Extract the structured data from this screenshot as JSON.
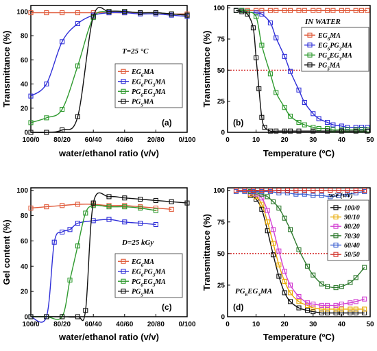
{
  "colors": {
    "EG": "#e05a3a",
    "EGPG": "#2f2fd8",
    "PGEG": "#2e9a2e",
    "PG": "#111111",
    "s7030": "#2f7a2f",
    "s8020": "#d23fd2",
    "s9010": "#e8a800",
    "s6040": "#3a5fd0",
    "s5050": "#d2342c",
    "ref": "#cc0000"
  },
  "chart_data": [
    {
      "id": "a",
      "type": "line",
      "panel_label": "(a)",
      "xlabel": "water/ethanol ratio (v/v)",
      "ylabel": "Transmittance (%)",
      "x_ticks": [
        "100/0",
        "80/20",
        "60/40",
        "40/60",
        "20/80",
        "0/100"
      ],
      "xlim": [
        100,
        0
      ],
      "ylim": [
        0,
        105
      ],
      "y_ticks": [
        0,
        20,
        40,
        60,
        80,
        100
      ],
      "annotation": "T=25 °C",
      "legend": {
        "placement": "center-right"
      },
      "series": [
        {
          "name": "EG₆MA",
          "color_key": "EG",
          "x": [
            100,
            90,
            80,
            70,
            60,
            50,
            40,
            30,
            20,
            10,
            0
          ],
          "y": [
            99,
            99,
            99,
            99,
            99,
            99,
            99,
            99,
            99,
            98,
            98
          ]
        },
        {
          "name": "EG₆PG₃MA",
          "color_key": "EGPG",
          "x": [
            100,
            90,
            80,
            70,
            60,
            50,
            40,
            30,
            20,
            10,
            0
          ],
          "y": [
            30,
            40,
            75,
            90,
            97,
            99,
            99,
            98,
            98,
            97,
            96
          ]
        },
        {
          "name": "PG₆EG₃MA",
          "color_key": "PGEG",
          "x": [
            100,
            90,
            80,
            70,
            60,
            50,
            40,
            30,
            20,
            10,
            0
          ],
          "y": [
            8,
            12,
            19,
            55,
            95,
            100,
            100,
            99,
            99,
            98,
            97
          ]
        },
        {
          "name": "PG₅MA",
          "color_key": "PG",
          "x": [
            100,
            90,
            80,
            70,
            60,
            50,
            40,
            30,
            20,
            10,
            0
          ],
          "y": [
            0,
            0,
            2,
            13,
            96,
            100,
            100,
            99,
            99,
            98,
            97
          ]
        }
      ]
    },
    {
      "id": "b",
      "type": "line",
      "panel_label": "(b)",
      "xlabel": "Temperature (ºC)",
      "ylabel": "Transmittance (%)",
      "xlim": [
        0,
        50
      ],
      "ylim": [
        0,
        102
      ],
      "x_ticks": [
        0,
        10,
        20,
        30,
        40,
        50
      ],
      "y_ticks": [
        0,
        25,
        50,
        75,
        100
      ],
      "annotation": "IN WATER",
      "reference_line": 50,
      "legend": {
        "placement": "top-right"
      },
      "series": [
        {
          "name": "EG₆MA",
          "color_key": "EG",
          "x": [
            3,
            5,
            7,
            10,
            12,
            15,
            17,
            20,
            22,
            25,
            27,
            30,
            32,
            35,
            37,
            40,
            42,
            45,
            47,
            49
          ],
          "y": [
            98,
            98,
            98,
            98,
            98,
            98,
            98,
            98,
            98,
            98,
            98,
            98,
            98,
            98,
            98,
            98,
            98,
            98,
            98,
            98
          ]
        },
        {
          "name": "EG₆PG₃MA",
          "color_key": "EGPG",
          "x": [
            3,
            5,
            7,
            10,
            12,
            15,
            17,
            20,
            22,
            25,
            27,
            30,
            32,
            35,
            37,
            40,
            42,
            45,
            47,
            49
          ],
          "y": [
            98,
            98,
            97,
            96,
            95,
            88,
            76,
            61,
            49,
            34,
            24,
            15,
            11,
            8,
            6,
            5,
            4,
            4,
            4,
            4
          ]
        },
        {
          "name": "PG₆EG₃MA",
          "color_key": "PGEG",
          "x": [
            3,
            5,
            7,
            10,
            12,
            15,
            17,
            20,
            22,
            25,
            27,
            30,
            32,
            35,
            37,
            40,
            42,
            45,
            47,
            49
          ],
          "y": [
            98,
            98,
            97,
            93,
            70,
            47,
            32,
            20,
            13,
            8,
            6,
            4,
            3,
            3,
            2,
            2,
            2,
            2,
            2,
            2
          ]
        },
        {
          "name": "PG₅MA",
          "color_key": "PG",
          "x": [
            3,
            5,
            7,
            9,
            10,
            11,
            12,
            13,
            15,
            17,
            20,
            22,
            25,
            30,
            35,
            40,
            45,
            49
          ],
          "y": [
            98,
            97,
            95,
            84,
            60,
            35,
            12,
            4,
            1,
            1,
            1,
            1,
            1,
            1,
            1,
            1,
            1,
            1
          ]
        }
      ]
    },
    {
      "id": "c",
      "type": "line",
      "panel_label": "(c)",
      "xlabel": "water/ethanol ratio (v/v)",
      "ylabel": "Gel content (%)",
      "x_ticks": [
        "100/0",
        "80/20",
        "60/40",
        "40/60",
        "20/80",
        "0/100"
      ],
      "xlim": [
        100,
        0
      ],
      "ylim": [
        0,
        102
      ],
      "y_ticks": [
        0,
        20,
        40,
        60,
        80,
        100
      ],
      "annotation": "D=25 kGy",
      "legend": {
        "placement": "bottom-right"
      },
      "series": [
        {
          "name": "EG₆MA",
          "color_key": "EG",
          "x": [
            100,
            90,
            80,
            70,
            60,
            50,
            40,
            30,
            20,
            10
          ],
          "y": [
            86,
            87,
            88,
            89,
            89,
            88,
            88,
            87,
            86,
            85
          ]
        },
        {
          "name": "EG₆PG₃MA",
          "color_key": "EGPG",
          "x": [
            100,
            90,
            85,
            80,
            75,
            70,
            60,
            50,
            40,
            30,
            20
          ],
          "y": [
            0,
            0,
            59,
            67,
            69,
            74,
            76,
            77,
            75,
            74,
            73
          ]
        },
        {
          "name": "PG₆EG₃MA",
          "color_key": "PGEG",
          "x": [
            100,
            90,
            80,
            75,
            70,
            65,
            60,
            50,
            40,
            30,
            20
          ],
          "y": [
            0,
            0,
            0,
            29,
            56,
            82,
            88,
            87,
            87,
            86,
            84
          ]
        },
        {
          "name": "PG₅MA",
          "color_key": "PG",
          "x": [
            100,
            90,
            80,
            70,
            65,
            60,
            50,
            40,
            30,
            20,
            10,
            0
          ],
          "y": [
            0,
            0,
            0,
            0,
            5,
            90,
            95,
            94,
            93,
            92,
            91,
            90
          ]
        }
      ]
    },
    {
      "id": "d",
      "type": "line",
      "panel_label": "(d)",
      "xlabel": "Temperature (ºC)",
      "ylabel": "Transmittance (%)",
      "xlim": [
        0,
        50
      ],
      "ylim": [
        0,
        102
      ],
      "x_ticks": [
        0,
        10,
        20,
        30,
        40,
        50
      ],
      "y_ticks": [
        0,
        25,
        50,
        75,
        100
      ],
      "annotation": "PG₆EG₃MA",
      "reference_line": 50,
      "legend": {
        "title": "w/e (v/v)",
        "placement": "top-right"
      },
      "series": [
        {
          "name": "100/0",
          "color_key": "PG",
          "x": [
            8,
            10,
            12,
            14,
            16,
            18,
            20,
            22,
            25,
            28,
            30,
            33,
            35,
            38,
            40,
            43,
            45,
            48
          ],
          "y": [
            96,
            93,
            85,
            68,
            49,
            32,
            19,
            12,
            7,
            5,
            4,
            3,
            3,
            3,
            3,
            3,
            3,
            3
          ]
        },
        {
          "name": "90/10",
          "color_key": "s9010",
          "x": [
            8,
            10,
            12,
            14,
            16,
            18,
            20,
            22,
            25,
            28,
            30,
            33,
            35,
            38,
            40,
            43,
            45,
            48
          ],
          "y": [
            97,
            95,
            89,
            75,
            58,
            41,
            28,
            19,
            12,
            9,
            7,
            6,
            6,
            6,
            6,
            6,
            6,
            6
          ]
        },
        {
          "name": "80/20",
          "color_key": "s8020",
          "x": [
            8,
            10,
            12,
            14,
            16,
            18,
            20,
            22,
            25,
            28,
            30,
            33,
            35,
            38,
            40,
            43,
            45,
            48
          ],
          "y": [
            98,
            97,
            94,
            84,
            69,
            52,
            36,
            25,
            16,
            11,
            10,
            9,
            9,
            9,
            10,
            11,
            12,
            14
          ]
        },
        {
          "name": "70/30",
          "color_key": "s7030",
          "x": [
            8,
            10,
            12,
            14,
            16,
            18,
            20,
            22,
            25,
            28,
            30,
            33,
            35,
            38,
            40,
            43,
            45,
            48
          ],
          "y": [
            99,
            98,
            97,
            95,
            91,
            86,
            78,
            69,
            53,
            40,
            33,
            26,
            24,
            23,
            24,
            27,
            31,
            39
          ]
        },
        {
          "name": "60/40",
          "color_key": "s6040",
          "x": [
            3,
            6,
            9,
            12,
            15,
            18,
            21,
            24,
            27,
            30,
            33,
            36,
            39,
            42,
            45,
            48
          ],
          "y": [
            99,
            99,
            99,
            99,
            99,
            98,
            98,
            97,
            97,
            96,
            96,
            95,
            96,
            97,
            98,
            99
          ]
        },
        {
          "name": "50/50",
          "color_key": "s5050",
          "x": [
            3,
            6,
            9,
            12,
            15,
            18,
            21,
            24,
            27,
            30,
            33,
            36,
            39,
            42,
            45,
            48
          ],
          "y": [
            100,
            100,
            100,
            100,
            100,
            100,
            100,
            100,
            100,
            100,
            100,
            100,
            100,
            100,
            100,
            100
          ]
        }
      ]
    }
  ]
}
